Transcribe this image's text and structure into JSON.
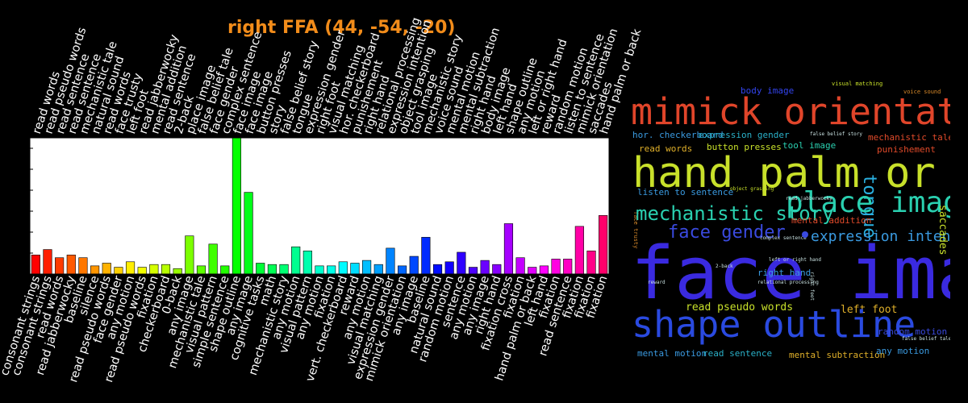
{
  "title": "right FFA (44, -54, -20)",
  "chart_data": {
    "type": "bar",
    "title": "right FFA (44, -54, -20)",
    "xlabel": "",
    "ylabel": "",
    "ylim": [
      0,
      1
    ],
    "top_labels": [
      "read words",
      "read pseudo words",
      "read sentence",
      "read sentence",
      "mechanistic tale",
      "natural sound",
      "read words",
      "face trusty",
      "left foot",
      "read jabberwocky",
      "mental addition",
      "read sentence",
      "2-back",
      "place image",
      "false belief tale",
      "face gender",
      "complex sentence",
      "face image",
      "face image",
      "button presses",
      "story",
      "false belief story",
      "tongue",
      "expression gender",
      "right foot",
      "visual matching",
      "hor. checkerboard",
      "punishement",
      "right hand",
      "relational processing",
      "expression intention",
      "object grasping",
      "tool image",
      "mechanistic story",
      "voice sound",
      "mental motion",
      "mental subtraction",
      "right hand",
      "body image",
      "left hand",
      "shape outline",
      "any motion",
      "left or right hand",
      "reward",
      "random motion",
      "listen to sentence",
      "mimick orientation",
      "saccades",
      "hand palm or back"
    ],
    "bottom_labels": [
      "consonant strings",
      "consonant strings",
      "read words",
      "read jabberwocky",
      "baseline",
      "silence",
      "read pseudo words",
      "face gender",
      "any motion",
      "read pseudo words",
      "fixation",
      "checkerboard",
      "0-back",
      "any image",
      "mechanistic tale",
      "visual pattern",
      "simple sentence",
      "shape outline",
      "any image",
      "cognitive tasks",
      "math",
      "mechanistic story",
      "any motion",
      "visual pattern",
      "any motion",
      "fixation",
      "vert. checkerboard",
      "reward",
      "any motion",
      "visual matching",
      "expression gender",
      "mimick orientation",
      "any image",
      "baseline",
      "natural sound",
      "random motion",
      "sentence",
      "any motion",
      "any image",
      "right hand",
      "fixation cross",
      "fixation",
      "hand palm or back",
      "left hand",
      "fixation",
      "read sentence",
      "fixation",
      "fixation",
      "fixation"
    ],
    "values": [
      0.14,
      0.18,
      0.12,
      0.14,
      0.12,
      0.06,
      0.08,
      0.05,
      0.09,
      0.05,
      0.07,
      0.07,
      0.04,
      0.28,
      0.06,
      0.22,
      0.06,
      1.0,
      0.6,
      0.08,
      0.07,
      0.07,
      0.2,
      0.17,
      0.06,
      0.06,
      0.09,
      0.08,
      0.1,
      0.07,
      0.19,
      0.06,
      0.13,
      0.27,
      0.07,
      0.09,
      0.16,
      0.05,
      0.1,
      0.07,
      0.37,
      0.12,
      0.05,
      0.06,
      0.11,
      0.11,
      0.35,
      0.17,
      0.43
    ]
  },
  "wordcloud": [
    {
      "text": "body image",
      "size": 11,
      "color": "#3344ee"
    },
    {
      "text": "visual matching",
      "size": 7,
      "color": "#c8e02a"
    },
    {
      "text": "voice sound",
      "size": 7,
      "color": "#d98a2a"
    },
    {
      "text": "mimick orientation",
      "size": 45,
      "color": "#e0452a"
    },
    {
      "text": "hor. checkerboard",
      "size": 11,
      "color": "#3a9ae0"
    },
    {
      "text": "expression gender",
      "size": 11,
      "color": "#2ab0c8"
    },
    {
      "text": "false belief story",
      "size": 6,
      "color": "#c8e0e0"
    },
    {
      "text": "mechanistic tale",
      "size": 11,
      "color": "#e04a2a"
    },
    {
      "text": "read words",
      "size": 11,
      "color": "#e0b02a"
    },
    {
      "text": "button presses",
      "size": 11,
      "color": "#c8e02a"
    },
    {
      "text": "tool image",
      "size": 11,
      "color": "#2ad0b0"
    },
    {
      "text": "punishement",
      "size": 11,
      "color": "#e04a2a"
    },
    {
      "text": "hand palm or back",
      "size": 52,
      "color": "#c8e02a"
    },
    {
      "text": "tongue",
      "size": 22,
      "color": "#2ab0e0"
    },
    {
      "text": "face trusty",
      "size": 7,
      "color": "#d98a2a"
    },
    {
      "text": "object grasping",
      "size": 6,
      "color": "#c8e02a"
    },
    {
      "text": "listen to sentence",
      "size": 11,
      "color": "#3a9ae0"
    },
    {
      "text": "place image",
      "size": 36,
      "color": "#2ad0b0"
    },
    {
      "text": "mechanistic story",
      "size": 24,
      "color": "#2ad0b0"
    },
    {
      "text": "read jabberwocky",
      "size": 6,
      "color": "#c8e0e0"
    },
    {
      "text": "mental addition",
      "size": 11,
      "color": "#e04a2a"
    },
    {
      "text": "face gender",
      "size": 22,
      "color": "#3a4ae0"
    },
    {
      "text": "expression intention",
      "size": 18,
      "color": "#3a9ae0"
    },
    {
      "text": "complex sentence",
      "size": 6,
      "color": "#c8e0e0"
    },
    {
      "text": "face image",
      "size": 90,
      "color": "#3a2ae0"
    },
    {
      "text": "saccades",
      "size": 13,
      "color": "#c8e02a"
    },
    {
      "text": "right hand",
      "size": 11,
      "color": "#3a9ae0"
    },
    {
      "text": "left or right hand",
      "size": 6,
      "color": "#c8e0e0"
    },
    {
      "text": "2-back",
      "size": 6,
      "color": "#c8e0e0"
    },
    {
      "text": "right foot",
      "size": 6,
      "color": "#c8e0e0"
    },
    {
      "text": "reward",
      "size": 6,
      "color": "#c8e0e0"
    },
    {
      "text": "relational processing",
      "size": 6,
      "color": "#c8e0e0"
    },
    {
      "text": "read pseudo words",
      "size": 13,
      "color": "#c8e02a"
    },
    {
      "text": "left foot",
      "size": 13,
      "color": "#e0b02a"
    },
    {
      "text": "shape outline",
      "size": 45,
      "color": "#2a4ae0"
    },
    {
      "text": "random motion",
      "size": 11,
      "color": "#3a4ae0"
    },
    {
      "text": "false belief tale",
      "size": 6,
      "color": "#c8e0e0"
    },
    {
      "text": "mental motion",
      "size": 11,
      "color": "#3a9ae0"
    },
    {
      "text": "read sentence",
      "size": 11,
      "color": "#2ab0c8"
    },
    {
      "text": "mental subtraction",
      "size": 11,
      "color": "#e0b02a"
    },
    {
      "text": "any motion",
      "size": 11,
      "color": "#3a9ae0"
    }
  ]
}
